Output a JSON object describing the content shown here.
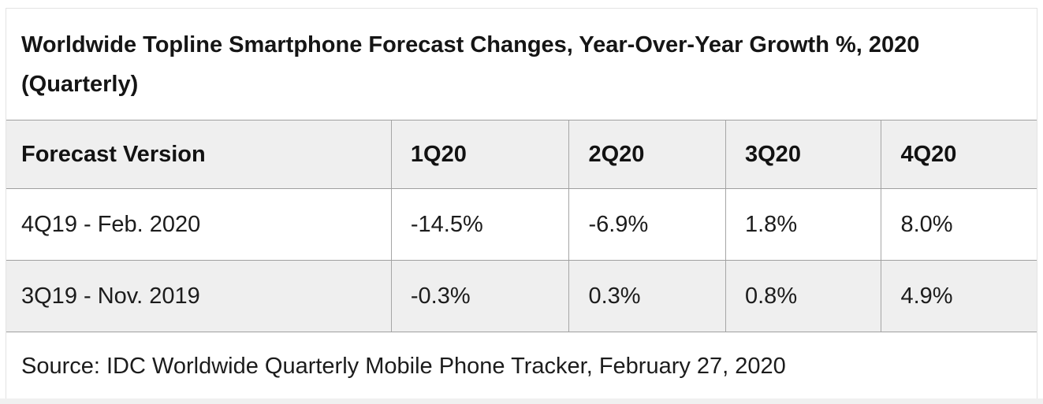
{
  "table": {
    "title": "Worldwide Topline Smartphone Forecast Changes, Year-Over-Year Growth %, 2020 (Quarterly)",
    "columns": [
      "Forecast Version",
      "1Q20",
      "2Q20",
      "3Q20",
      "4Q20"
    ],
    "rows": [
      {
        "label": "4Q19 - Feb. 2020",
        "values": [
          "-14.5%",
          "-6.9%",
          "1.8%",
          "8.0%"
        ]
      },
      {
        "label": "3Q19 - Nov. 2019",
        "values": [
          "-0.3%",
          "0.3%",
          "0.8%",
          "4.9%"
        ]
      }
    ],
    "source": "Source: IDC Worldwide Quarterly Mobile Phone Tracker, February 27, 2020"
  },
  "chart_data": {
    "type": "table",
    "title": "Worldwide Topline Smartphone Forecast Changes, Year-Over-Year Growth %, 2020 (Quarterly)",
    "columns": [
      "Forecast Version",
      "1Q20",
      "2Q20",
      "3Q20",
      "4Q20"
    ],
    "series": [
      {
        "name": "4Q19 - Feb. 2020",
        "values": [
          -14.5,
          -6.9,
          1.8,
          8.0
        ]
      },
      {
        "name": "3Q19 - Nov. 2019",
        "values": [
          -0.3,
          0.3,
          0.8,
          4.9
        ]
      }
    ],
    "units": "year-over-year growth percent",
    "source": "Source: IDC Worldwide Quarterly Mobile Phone Tracker, February 27, 2020"
  },
  "colors": {
    "row_stripe_gray": "#efefef",
    "inner_rule_gray": "#9f9f9f",
    "outer_border_gray": "#e3e3e3",
    "text_dark": "#1c1c1c",
    "page_bottom_strip": "#f0f0f0"
  }
}
